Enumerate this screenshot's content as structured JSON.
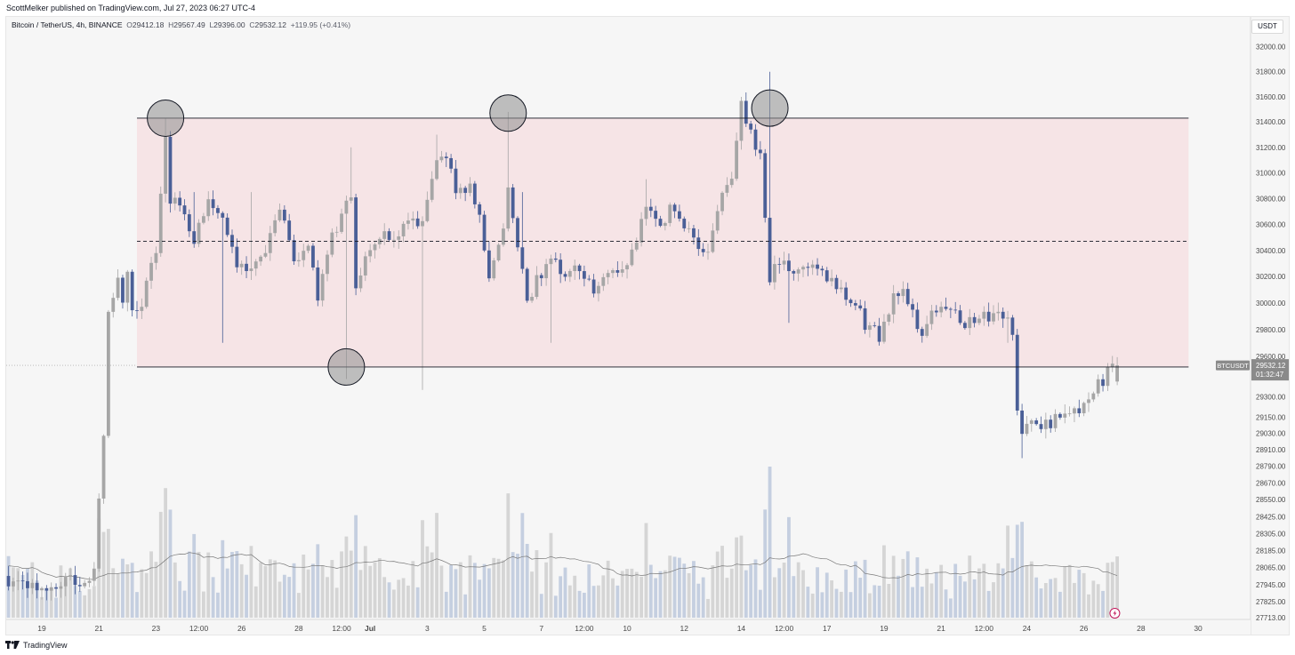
{
  "header": {
    "published": "ScottMelker published on TradingView.com, Jul 27, 2023 06:27 UTC-4"
  },
  "legend": {
    "symbol": "Bitcoin / TetherUS, 4h, BINANCE",
    "o_label": "O",
    "o_value": "29412.18",
    "h_label": "H",
    "h_value": "29567.49",
    "l_label": "L",
    "l_value": "29396.00",
    "c_label": "C",
    "c_value": "29532.12",
    "change": "+119.95 (+0.41%)"
  },
  "currency_button": "USDT",
  "price_tag": {
    "ticker": "BTCUSDT",
    "price": "29532.12",
    "countdown": "01:32:47"
  },
  "footer": {
    "brand": "TradingView"
  },
  "colors": {
    "up": "#a6a6a6",
    "down": "#4a5f97",
    "range_fill": "#f6e4e6",
    "circle_fill": "#8e8e8e",
    "volume_up": "#d5d5d5",
    "volume_down": "#c5cfe0",
    "volume_ma": "#7a7a7a",
    "badge": "#c2185b"
  },
  "chart_data": {
    "type": "candlestick",
    "symbol": "Bitcoin / TetherUS",
    "interval": "4h",
    "exchange": "BINANCE",
    "y_scale": "log",
    "y_ticks": [
      32000,
      31800,
      31600,
      31400,
      31200,
      31000,
      30800,
      30600,
      30400,
      30200,
      30000,
      29800,
      29600,
      29300,
      29150,
      29030,
      28910,
      28790,
      28670,
      28550,
      28425,
      28305,
      28185,
      28065,
      27945,
      27825,
      27713
    ],
    "x_ticks": [
      {
        "label": "19",
        "bar": -20
      },
      {
        "label": "21",
        "bar": -8
      },
      {
        "label": "23",
        "bar": 4
      },
      {
        "label": "12:00",
        "bar": 13
      },
      {
        "label": "26",
        "bar": 22
      },
      {
        "label": "28",
        "bar": 34
      },
      {
        "label": "12:00",
        "bar": 43
      },
      {
        "label": "Jul",
        "bar": 49
      },
      {
        "label": "3",
        "bar": 61
      },
      {
        "label": "5",
        "bar": 73
      },
      {
        "label": "7",
        "bar": 85
      },
      {
        "label": "12:00",
        "bar": 94
      },
      {
        "label": "10",
        "bar": 103
      },
      {
        "label": "12",
        "bar": 115
      },
      {
        "label": "14",
        "bar": 127
      },
      {
        "label": "12:00",
        "bar": 136
      },
      {
        "label": "17",
        "bar": 145
      },
      {
        "label": "19",
        "bar": 157
      },
      {
        "label": "21",
        "bar": 169
      },
      {
        "label": "12:00",
        "bar": 178
      },
      {
        "label": "24",
        "bar": 187
      },
      {
        "label": "26",
        "bar": 199
      },
      {
        "label": "28",
        "bar": 211
      },
      {
        "label": "30",
        "bar": 223
      }
    ],
    "range": {
      "top": 31430,
      "mid": 30470,
      "bottom": 29520,
      "start_bar": 0,
      "end_bar": 221
    },
    "touch_points": [
      {
        "bar": 6,
        "price": 31430
      },
      {
        "bar": 78,
        "price": 31470
      },
      {
        "bar": 133,
        "price": 31510
      },
      {
        "bar": 44,
        "price": 29520
      }
    ],
    "volume_ma_note": "moving average of volume"
  }
}
